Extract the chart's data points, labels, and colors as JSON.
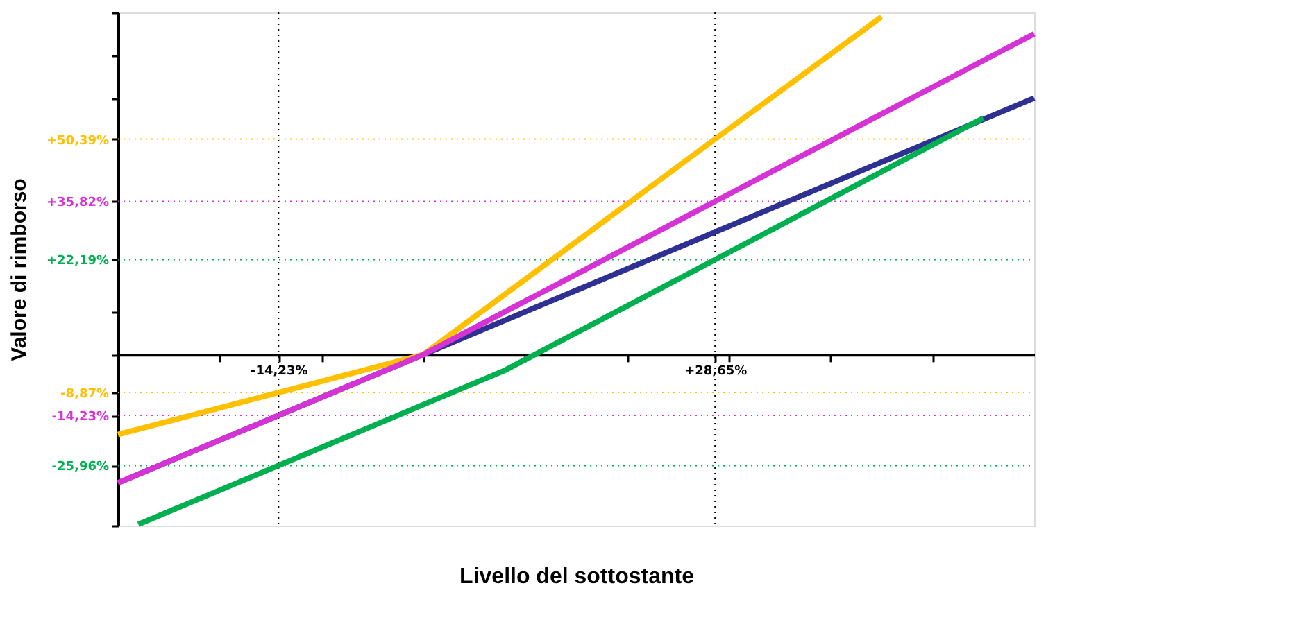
{
  "chart_data": {
    "type": "line",
    "xlabel": "Livello del sottostante",
    "ylabel": "Valore di rimborso",
    "xlim": [
      -30,
      60
    ],
    "ylim": [
      -40,
      80
    ],
    "xticks": [
      {
        "value": -20,
        "label": null
      },
      {
        "value": -14.23,
        "label": "-14,23%"
      },
      {
        "value": -10,
        "label": null
      },
      {
        "value": 0,
        "label": null
      },
      {
        "value": 10,
        "label": null
      },
      {
        "value": 20,
        "label": null
      },
      {
        "value": 28.65,
        "label": "+28,65%"
      },
      {
        "value": 30,
        "label": null
      },
      {
        "value": 40,
        "label": null
      },
      {
        "value": 50,
        "label": null
      }
    ],
    "yticks": [
      {
        "value": -40,
        "label": null
      },
      {
        "value": -25.96,
        "label": "-25,96%"
      },
      {
        "value": -14.23,
        "label": "-14,23%"
      },
      {
        "value": -8.87,
        "label": "-8,87%"
      },
      {
        "value": 0,
        "label": null
      },
      {
        "value": 10,
        "label": null
      },
      {
        "value": 22.19,
        "label": "+22,19%"
      },
      {
        "value": 35.82,
        "label": "+35,82%"
      },
      {
        "value": 50.39,
        "label": "+50,39%"
      },
      {
        "value": 60,
        "label": null
      },
      {
        "value": 70,
        "label": null
      },
      {
        "value": 80,
        "label": null
      }
    ],
    "grid": false,
    "marker": "none",
    "line_style": "solid",
    "series": [
      {
        "color": "#2e3192",
        "x": [
          -30,
          60
        ],
        "values": [
          -30,
          60
        ]
      },
      {
        "color": "#00b050",
        "x": [
          -28,
          -14.23,
          8,
          28.65,
          55
        ],
        "values": [
          -39.7,
          -25.96,
          -3.7,
          22.19,
          55.3
        ]
      },
      {
        "color": "#ffc000",
        "x": [
          -30,
          -14.23,
          0,
          28.65,
          45
        ],
        "values": [
          -18.7,
          -8.87,
          0,
          50.39,
          79
        ]
      },
      {
        "color": "#d633d6",
        "x": [
          -30,
          -14.23,
          0,
          28.65,
          60
        ],
        "values": [
          -30,
          -14.23,
          0,
          35.82,
          75
        ]
      }
    ],
    "ref_lines": [
      {
        "axis": "y",
        "value": 50.39,
        "color": "#ffc000",
        "line_style": "dotted"
      },
      {
        "axis": "y",
        "value": 35.82,
        "color": "#d633d6",
        "line_style": "dotted"
      },
      {
        "axis": "y",
        "value": 22.19,
        "color": "#00b050",
        "line_style": "dotted"
      },
      {
        "axis": "y",
        "value": -8.87,
        "color": "#ffc000",
        "line_style": "dotted"
      },
      {
        "axis": "y",
        "value": -14.23,
        "color": "#d633d6",
        "line_style": "dotted"
      },
      {
        "axis": "y",
        "value": -25.96,
        "color": "#00b050",
        "line_style": "dotted"
      },
      {
        "axis": "x",
        "value": -14.23,
        "color": "#000000",
        "line_style": "dotted"
      },
      {
        "axis": "x",
        "value": 28.65,
        "color": "#000000",
        "line_style": "dotted"
      }
    ]
  }
}
